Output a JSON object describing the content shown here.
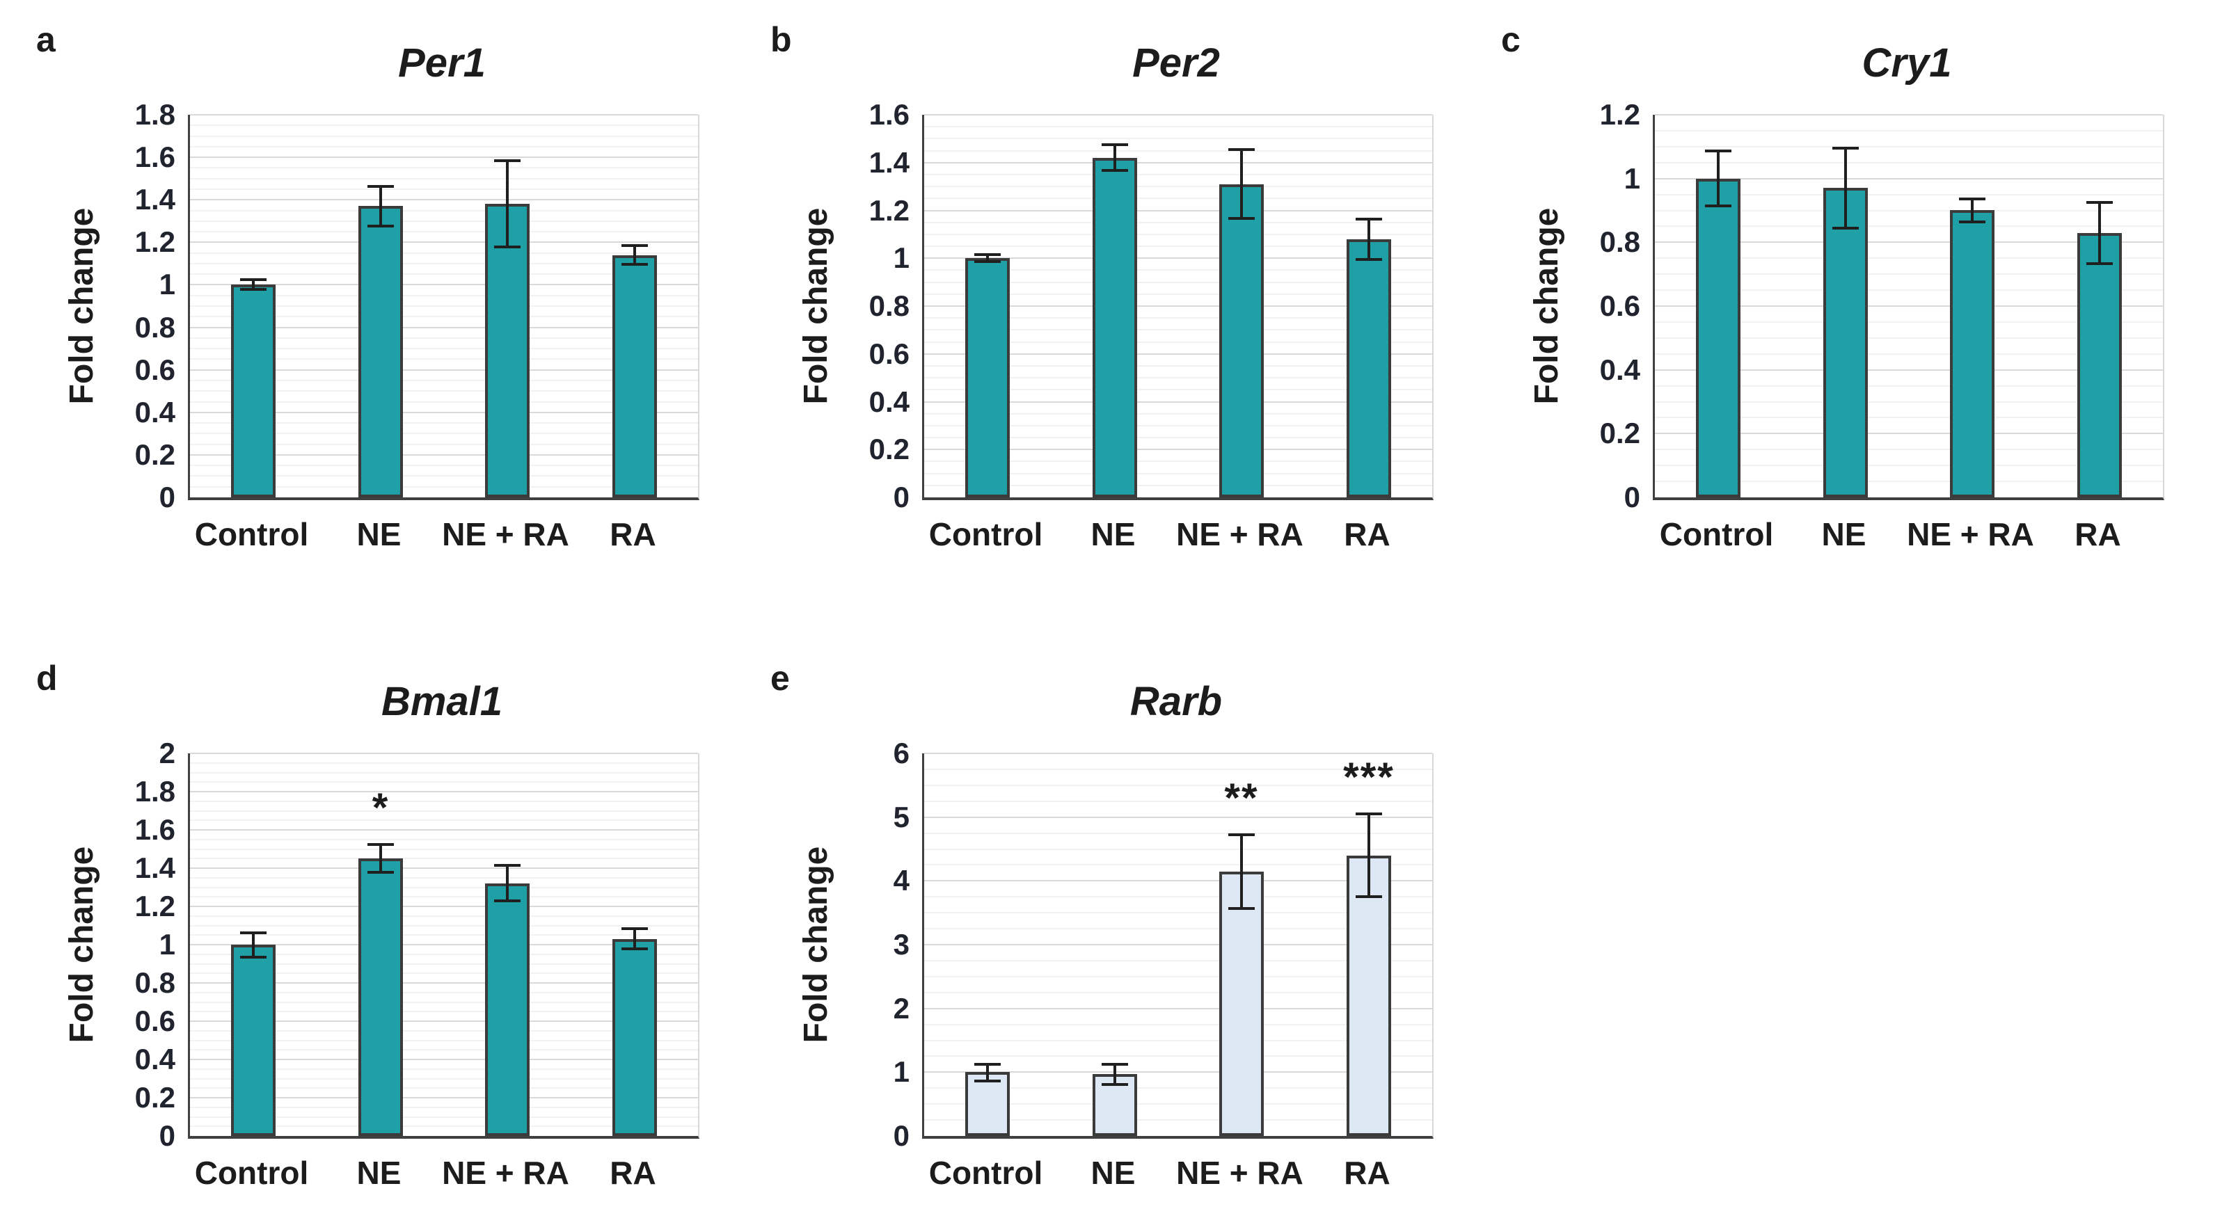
{
  "figure": {
    "background": "#ffffff",
    "y_axis_label": "Fold change",
    "categories": [
      "Control",
      "NE",
      "NE + RA",
      "RA"
    ]
  },
  "colors": {
    "teal_fill": "#1fa0a6",
    "light_blue_fill": "#dde8f4",
    "bar_border": "#3b3b3b",
    "error_bar": "#1f1f1f",
    "gridline_major": "#d9d9d9",
    "gridline_minor": "#f2f2f2",
    "axis_line": "#404040",
    "text": "#1c1c1c"
  },
  "chart_data": [
    {
      "panel": "a",
      "type": "bar",
      "title": "Per1",
      "ylabel": "Fold change",
      "categories": [
        "Control",
        "NE",
        "NE + RA",
        "RA"
      ],
      "values": [
        1.0,
        1.37,
        1.38,
        1.14
      ],
      "errors": [
        0.03,
        0.1,
        0.21,
        0.05
      ],
      "significance": [
        "",
        "",
        "",
        ""
      ],
      "ylim": [
        0,
        1.8
      ],
      "ytick_step": 0.2,
      "yticks": [
        "0",
        "0.2",
        "0.4",
        "0.6",
        "0.8",
        "1",
        "1.2",
        "1.4",
        "1.6",
        "1.8"
      ],
      "bar_color": "#1fa0a6",
      "grid": true,
      "legend": "none"
    },
    {
      "panel": "b",
      "type": "bar",
      "title": "Per2",
      "ylabel": "Fold change",
      "categories": [
        "Control",
        "NE",
        "NE + RA",
        "RA"
      ],
      "values": [
        1.0,
        1.42,
        1.31,
        1.08
      ],
      "errors": [
        0.02,
        0.06,
        0.15,
        0.09
      ],
      "significance": [
        "",
        "",
        "",
        ""
      ],
      "ylim": [
        0,
        1.6
      ],
      "ytick_step": 0.2,
      "yticks": [
        "0",
        "0.2",
        "0.4",
        "0.6",
        "0.8",
        "1",
        "1.2",
        "1.4",
        "1.6"
      ],
      "bar_color": "#1fa0a6",
      "grid": true,
      "legend": "none"
    },
    {
      "panel": "c",
      "type": "bar",
      "title": "Cry1",
      "ylabel": "Fold change",
      "categories": [
        "Control",
        "NE",
        "NE + RA",
        "RA"
      ],
      "values": [
        1.0,
        0.97,
        0.9,
        0.83
      ],
      "errors": [
        0.09,
        0.13,
        0.04,
        0.1
      ],
      "significance": [
        "",
        "",
        "",
        ""
      ],
      "ylim": [
        0,
        1.2
      ],
      "ytick_step": 0.2,
      "yticks": [
        "0",
        "0.2",
        "0.4",
        "0.6",
        "0.8",
        "1",
        "1.2"
      ],
      "bar_color": "#1fa0a6",
      "grid": true,
      "legend": "none"
    },
    {
      "panel": "d",
      "type": "bar",
      "title": "Bmal1",
      "ylabel": "Fold change",
      "categories": [
        "Control",
        "NE",
        "NE + RA",
        "RA"
      ],
      "values": [
        1.0,
        1.45,
        1.32,
        1.03
      ],
      "errors": [
        0.07,
        0.08,
        0.1,
        0.06
      ],
      "significance": [
        "",
        "*",
        "",
        ""
      ],
      "ylim": [
        0,
        2
      ],
      "ytick_step": 0.2,
      "yticks": [
        "0",
        "0.2",
        "0.4",
        "0.6",
        "0.8",
        "1",
        "1.2",
        "1.4",
        "1.6",
        "1.8",
        "2"
      ],
      "bar_color": "#1fa0a6",
      "grid": true,
      "legend": "none"
    },
    {
      "panel": "e",
      "type": "bar",
      "title": "Rarb",
      "ylabel": "Fold change",
      "categories": [
        "Control",
        "NE",
        "NE + RA",
        "RA"
      ],
      "values": [
        1.0,
        0.97,
        4.15,
        4.4
      ],
      "errors": [
        0.15,
        0.18,
        0.6,
        0.67
      ],
      "significance": [
        "",
        "",
        "**",
        "***"
      ],
      "ylim": [
        0,
        6
      ],
      "ytick_step": 1,
      "yticks": [
        "0",
        "1",
        "2",
        "3",
        "4",
        "5",
        "6"
      ],
      "bar_color": "#dde8f4",
      "grid": true,
      "legend": "none"
    }
  ]
}
